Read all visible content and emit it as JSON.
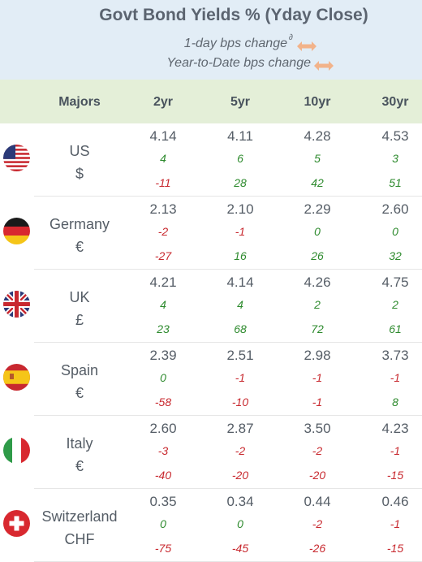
{
  "header": {
    "title": "Govt Bond Yields %  (Yday Close)",
    "legend_daily": "1-day bps change",
    "legend_daily_mark": "∂",
    "legend_ytd": "Year-to-Date bps change"
  },
  "table": {
    "label_column": "Majors",
    "columns": [
      "2yr",
      "5yr",
      "10yr",
      "30yr"
    ],
    "rows": [
      {
        "country": "US",
        "currency": "$",
        "flag": "us-flag-icon",
        "yield": [
          "4.14",
          "4.11",
          "4.28",
          "4.53"
        ],
        "daily": [
          "4",
          "6",
          "5",
          "3"
        ],
        "ytd": [
          "-11",
          "28",
          "42",
          "51"
        ]
      },
      {
        "country": "Germany",
        "currency": "€",
        "flag": "germany-flag-icon",
        "yield": [
          "2.13",
          "2.10",
          "2.29",
          "2.60"
        ],
        "daily": [
          "-2",
          "-1",
          "0",
          "0"
        ],
        "ytd": [
          "-27",
          "16",
          "26",
          "32"
        ]
      },
      {
        "country": "UK",
        "currency": "£",
        "flag": "uk-flag-icon",
        "yield": [
          "4.21",
          "4.14",
          "4.26",
          "4.75"
        ],
        "daily": [
          "4",
          "4",
          "2",
          "2"
        ],
        "ytd": [
          "23",
          "68",
          "72",
          "61"
        ]
      },
      {
        "country": "Spain",
        "currency": "€",
        "flag": "spain-flag-icon",
        "yield": [
          "2.39",
          "2.51",
          "2.98",
          "3.73"
        ],
        "daily": [
          "0",
          "-1",
          "-1",
          "-1"
        ],
        "ytd": [
          "-58",
          "-10",
          "-1",
          "8"
        ]
      },
      {
        "country": "Italy",
        "currency": "€",
        "flag": "italy-flag-icon",
        "yield": [
          "2.60",
          "2.87",
          "3.50",
          "4.23"
        ],
        "daily": [
          "-3",
          "-2",
          "-2",
          "-1"
        ],
        "ytd": [
          "-40",
          "-20",
          "-20",
          "-15"
        ]
      },
      {
        "country": "Switzerland",
        "currency": "CHF",
        "flag": "switzerland-flag-icon",
        "yield": [
          "0.35",
          "0.34",
          "0.44",
          "0.46"
        ],
        "daily": [
          "0",
          "0",
          "-2",
          "-1"
        ],
        "ytd": [
          "-75",
          "-45",
          "-26",
          "-15"
        ]
      }
    ]
  },
  "colors": {
    "header_bg": "#e2edf6",
    "column_header_bg": "#e4efd8",
    "positive": "#2d8a2d",
    "negative": "#c8292f",
    "arrow": "#f2b38a"
  }
}
